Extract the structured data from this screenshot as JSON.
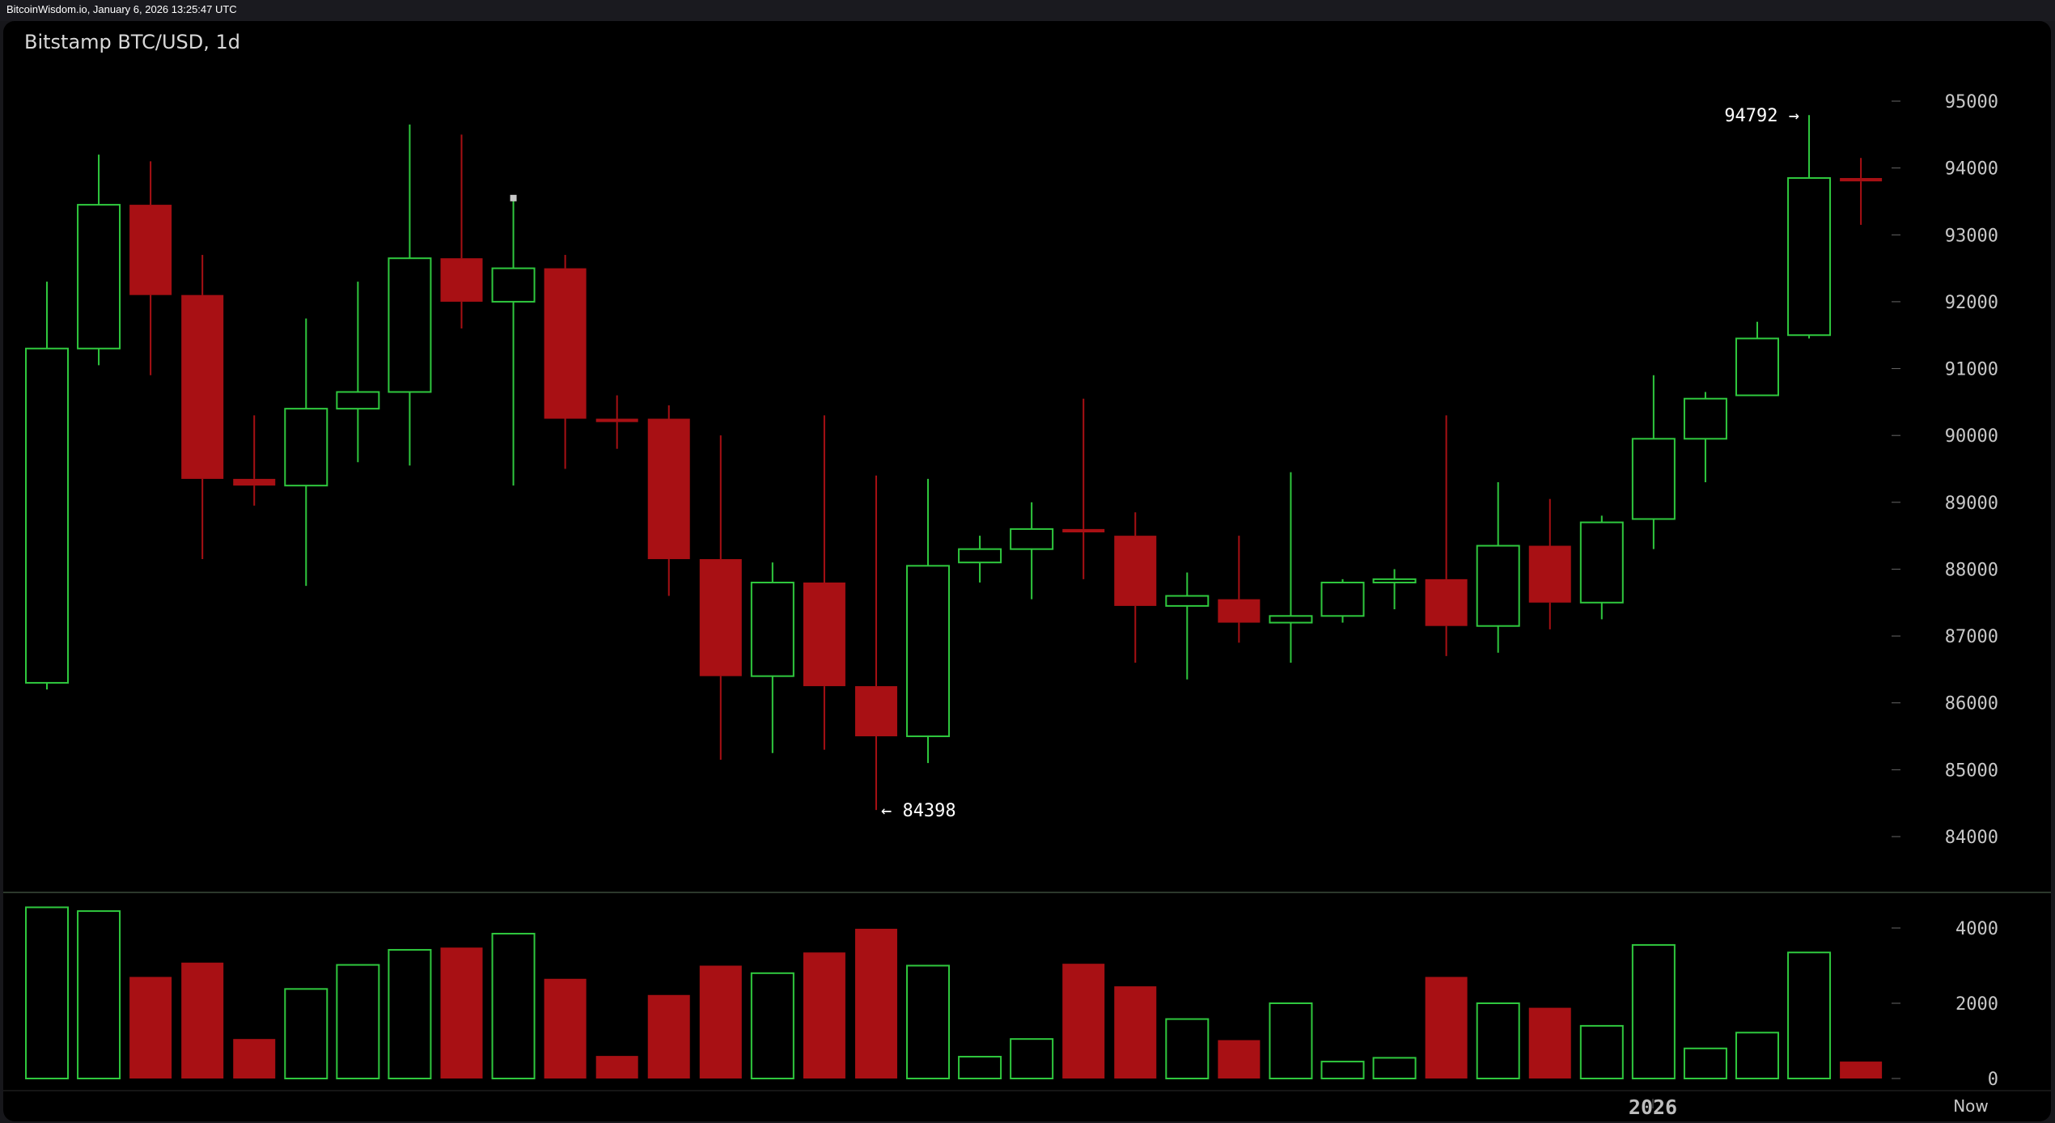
{
  "header": {
    "site_stamp": "BitcoinWisdom.io, January 6, 2026 13:25:47 UTC"
  },
  "colors": {
    "up": "#2fc83e",
    "down": "#a81014",
    "background": "#000000",
    "axis_text": "#c8c8c8"
  },
  "chart_data": {
    "type": "candlestick",
    "title": "Bitstamp BTC/USD, 1d",
    "price_axis": {
      "ticks": [
        84000,
        85000,
        86000,
        87000,
        88000,
        89000,
        90000,
        91000,
        92000,
        93000,
        94000,
        95000
      ],
      "labels": [
        "84000",
        "85000",
        "86000",
        "87000",
        "88000",
        "89000",
        "90000",
        "91000",
        "92000",
        "93000",
        "94000",
        "95000"
      ]
    },
    "volume_axis": {
      "ticks": [
        0,
        2000,
        4000
      ],
      "labels": [
        "0",
        "2000",
        "4000"
      ]
    },
    "x_labels": {
      "year": "2026",
      "now": "Now"
    },
    "annotations": {
      "high": {
        "value": 94792,
        "label": "94792 →"
      },
      "low": {
        "value": 84398,
        "label": "← 84398"
      }
    },
    "candles": [
      {
        "o": 86300,
        "h": 92300,
        "l": 86200,
        "c": 91300,
        "v": 4550
      },
      {
        "o": 91300,
        "h": 94200,
        "l": 91050,
        "c": 93450,
        "v": 4450
      },
      {
        "o": 93450,
        "h": 94100,
        "l": 90900,
        "c": 92100,
        "v": 2700
      },
      {
        "o": 92100,
        "h": 92700,
        "l": 88150,
        "c": 89350,
        "v": 3080
      },
      {
        "o": 89350,
        "h": 90300,
        "l": 88950,
        "c": 89250,
        "v": 1050
      },
      {
        "o": 89250,
        "h": 91750,
        "l": 87750,
        "c": 90400,
        "v": 2380
      },
      {
        "o": 90400,
        "h": 92300,
        "l": 89600,
        "c": 90650,
        "v": 3020
      },
      {
        "o": 90650,
        "h": 94650,
        "l": 89550,
        "c": 92650,
        "v": 3420
      },
      {
        "o": 92650,
        "h": 94500,
        "l": 91600,
        "c": 92000,
        "v": 3480
      },
      {
        "o": 92000,
        "h": 93550,
        "l": 89250,
        "c": 92500,
        "v": 3850
      },
      {
        "o": 92500,
        "h": 92700,
        "l": 89500,
        "c": 90250,
        "v": 2650
      },
      {
        "o": 90250,
        "h": 90600,
        "l": 89800,
        "c": 90200,
        "v": 600
      },
      {
        "o": 90250,
        "h": 90450,
        "l": 87600,
        "c": 88150,
        "v": 2220
      },
      {
        "o": 88150,
        "h": 90000,
        "l": 85150,
        "c": 86400,
        "v": 3000
      },
      {
        "o": 86400,
        "h": 88100,
        "l": 85250,
        "c": 87800,
        "v": 2800
      },
      {
        "o": 87800,
        "h": 90300,
        "l": 85300,
        "c": 86250,
        "v": 3350
      },
      {
        "o": 86250,
        "h": 89400,
        "l": 84398,
        "c": 85500,
        "v": 3980
      },
      {
        "o": 85500,
        "h": 89350,
        "l": 85100,
        "c": 88050,
        "v": 3000
      },
      {
        "o": 88100,
        "h": 88500,
        "l": 87800,
        "c": 88300,
        "v": 580
      },
      {
        "o": 88300,
        "h": 89000,
        "l": 87550,
        "c": 88600,
        "v": 1050
      },
      {
        "o": 88600,
        "h": 90550,
        "l": 87850,
        "c": 88550,
        "v": 3050
      },
      {
        "o": 88500,
        "h": 88850,
        "l": 86600,
        "c": 87450,
        "v": 2450
      },
      {
        "o": 87450,
        "h": 87950,
        "l": 86350,
        "c": 87600,
        "v": 1580
      },
      {
        "o": 87550,
        "h": 88500,
        "l": 86900,
        "c": 87200,
        "v": 1020
      },
      {
        "o": 87200,
        "h": 89450,
        "l": 86600,
        "c": 87300,
        "v": 2000
      },
      {
        "o": 87300,
        "h": 87850,
        "l": 87200,
        "c": 87800,
        "v": 450
      },
      {
        "o": 87800,
        "h": 88000,
        "l": 87400,
        "c": 87850,
        "v": 550
      },
      {
        "o": 87850,
        "h": 90300,
        "l": 86700,
        "c": 87150,
        "v": 2700
      },
      {
        "o": 87150,
        "h": 89300,
        "l": 86750,
        "c": 88350,
        "v": 2000
      },
      {
        "o": 88350,
        "h": 89050,
        "l": 87100,
        "c": 87500,
        "v": 1880
      },
      {
        "o": 87500,
        "h": 88800,
        "l": 87250,
        "c": 88700,
        "v": 1400
      },
      {
        "o": 88750,
        "h": 90900,
        "l": 88300,
        "c": 89950,
        "v": 3550
      },
      {
        "o": 89950,
        "h": 90650,
        "l": 89300,
        "c": 90550,
        "v": 800
      },
      {
        "o": 90600,
        "h": 91700,
        "l": 90600,
        "c": 91450,
        "v": 1220
      },
      {
        "o": 91500,
        "h": 94792,
        "l": 91450,
        "c": 93850,
        "v": 3350
      },
      {
        "o": 93850,
        "h": 94150,
        "l": 93150,
        "c": 93800,
        "v": 450
      }
    ]
  }
}
